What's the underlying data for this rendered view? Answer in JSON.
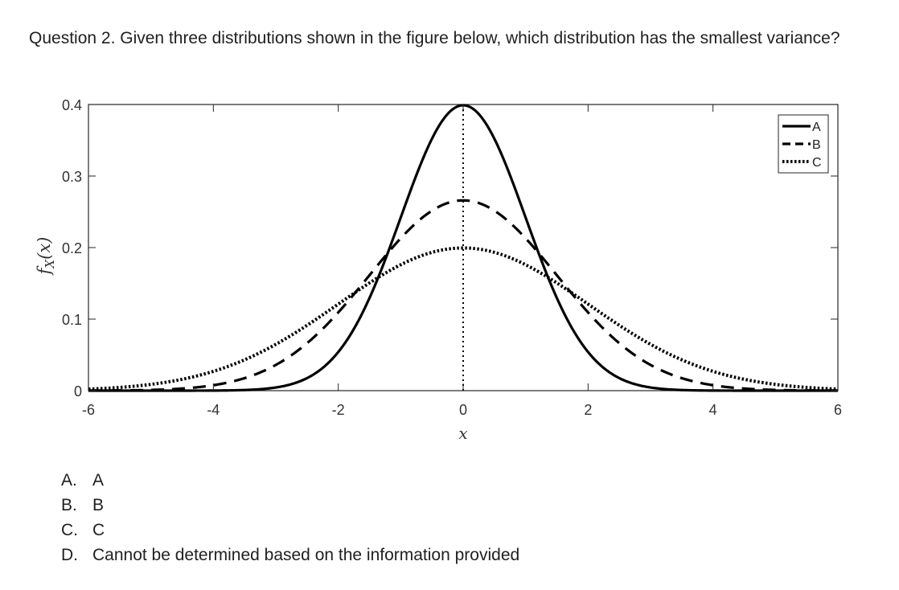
{
  "question": {
    "text": "Question 2. Given three distributions shown in the figure below, which distribution has the smallest variance?"
  },
  "options": [
    {
      "letter": "A.",
      "text": "A"
    },
    {
      "letter": "B.",
      "text": "B"
    },
    {
      "letter": "C.",
      "text": "C"
    },
    {
      "letter": "D.",
      "text": "Cannot be determined based on the information provided"
    }
  ],
  "chart_data": {
    "type": "line",
    "title": "",
    "xlabel": "x",
    "ylabel": "f_X(x)",
    "ylabel_display": {
      "base": "f",
      "sub": "X",
      "arg": "(x)"
    },
    "xlim": [
      -6,
      6
    ],
    "ylim": [
      0,
      0.4
    ],
    "xticks": [
      -6,
      -4,
      -2,
      0,
      2,
      4,
      6
    ],
    "yticks": [
      0,
      0.1,
      0.2,
      0.3,
      0.4
    ],
    "ytick_labels": [
      "0",
      "0.1",
      "0.2",
      "0.3",
      "0.4"
    ],
    "grid": false,
    "legend_position": "top-right",
    "vertical_line": {
      "x": 0,
      "style": "dotted"
    },
    "series": [
      {
        "name": "A",
        "style": "solid",
        "distribution": "normal",
        "mean": 0,
        "std": 1.0,
        "peak": 0.399
      },
      {
        "name": "B",
        "style": "dashed",
        "distribution": "normal",
        "mean": 0,
        "std": 1.5,
        "peak": 0.266
      },
      {
        "name": "C",
        "style": "dotted",
        "distribution": "normal",
        "mean": 0,
        "std": 2.0,
        "peak": 0.199
      }
    ],
    "color": "#000000"
  }
}
